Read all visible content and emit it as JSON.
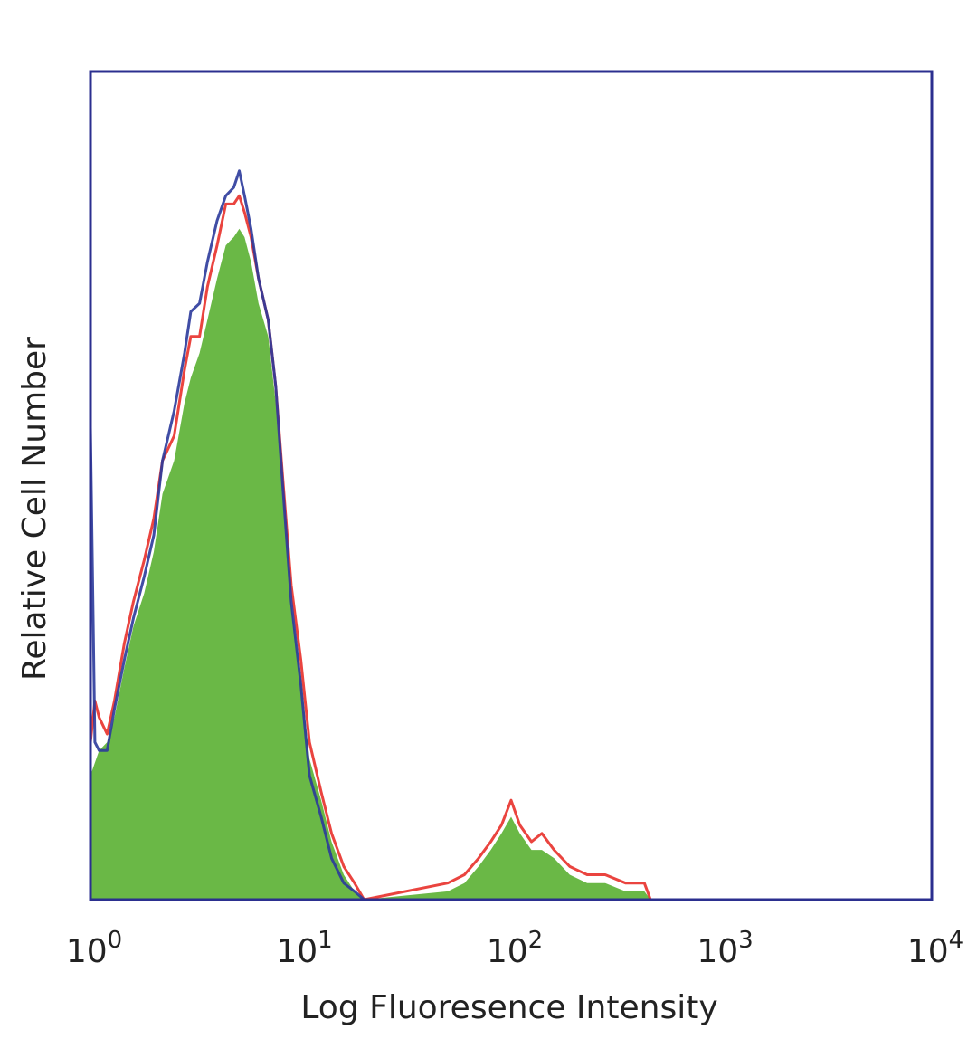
{
  "chart_data": {
    "type": "area",
    "xlabel": "Log Fluoresence Intensity",
    "ylabel": "Relative Cell Number",
    "x_scale": "log10",
    "xlim": [
      1,
      10000
    ],
    "ylim": [
      0,
      1
    ],
    "x_ticks": [
      {
        "base": "10",
        "exp": "0",
        "value": 1
      },
      {
        "base": "10",
        "exp": "1",
        "value": 10
      },
      {
        "base": "10",
        "exp": "2",
        "value": 100
      },
      {
        "base": "10",
        "exp": "3",
        "value": 1000
      },
      {
        "base": "10",
        "exp": "4",
        "value": 10000
      }
    ],
    "grid": false,
    "legend": "none",
    "colors": {
      "filled": "#6ab846",
      "red_outline": "#e8302a",
      "blue_outline": "#2b3a9b",
      "frame": "#2b2f8f"
    },
    "series": [
      {
        "style": "filled",
        "color": "#6ab846",
        "x": [
          1.0,
          1.1,
          1.2,
          1.3,
          1.45,
          1.6,
          1.8,
          2.0,
          2.2,
          2.5,
          2.8,
          3.0,
          3.3,
          3.6,
          4.0,
          4.4,
          4.8,
          5.1,
          5.4,
          5.8,
          6.3,
          7.0,
          7.6,
          8.2,
          9.0,
          10.0,
          11.0,
          12.5,
          14.0,
          16.0,
          18.0,
          20.0,
          50.0,
          60.0,
          70.0,
          80.0,
          90.0,
          100.0,
          110.0,
          125.0,
          140.0,
          160.0,
          190.0,
          230.0,
          280.0,
          350.0,
          430.0,
          460.0
        ],
        "y": [
          0.15,
          0.18,
          0.19,
          0.22,
          0.28,
          0.33,
          0.37,
          0.42,
          0.49,
          0.53,
          0.6,
          0.63,
          0.66,
          0.7,
          0.75,
          0.79,
          0.8,
          0.81,
          0.8,
          0.77,
          0.72,
          0.68,
          0.6,
          0.49,
          0.36,
          0.27,
          0.17,
          0.12,
          0.07,
          0.03,
          0.01,
          0.0,
          0.01,
          0.02,
          0.04,
          0.06,
          0.08,
          0.1,
          0.08,
          0.06,
          0.06,
          0.05,
          0.03,
          0.02,
          0.02,
          0.01,
          0.01,
          0.0
        ]
      },
      {
        "style": "outline",
        "color": "#e8302a",
        "x": [
          1.0,
          1.05,
          1.1,
          1.2,
          1.3,
          1.45,
          1.6,
          1.8,
          2.0,
          2.2,
          2.5,
          2.8,
          3.0,
          3.3,
          3.6,
          4.0,
          4.4,
          4.8,
          5.1,
          5.4,
          5.8,
          6.3,
          7.0,
          7.6,
          8.2,
          9.0,
          10.0,
          11.0,
          12.5,
          14.0,
          16.0,
          18.0,
          20.0,
          50.0,
          60.0,
          70.0,
          80.0,
          90.0,
          100.0,
          110.0,
          125.0,
          140.0,
          160.0,
          190.0,
          230.0,
          280.0,
          350.0,
          430.0,
          460.0
        ],
        "y": [
          0.19,
          0.24,
          0.22,
          0.2,
          0.24,
          0.31,
          0.36,
          0.41,
          0.46,
          0.53,
          0.56,
          0.64,
          0.68,
          0.68,
          0.74,
          0.79,
          0.84,
          0.84,
          0.85,
          0.83,
          0.8,
          0.75,
          0.7,
          0.62,
          0.51,
          0.38,
          0.29,
          0.19,
          0.13,
          0.08,
          0.04,
          0.02,
          0.0,
          0.02,
          0.03,
          0.05,
          0.07,
          0.09,
          0.12,
          0.09,
          0.07,
          0.08,
          0.06,
          0.04,
          0.03,
          0.03,
          0.02,
          0.02,
          0.0
        ]
      },
      {
        "style": "outline",
        "color": "#2b3a9b",
        "x": [
          1.0,
          1.05,
          1.1,
          1.2,
          1.3,
          1.45,
          1.6,
          1.8,
          2.0,
          2.2,
          2.5,
          2.8,
          3.0,
          3.3,
          3.6,
          4.0,
          4.4,
          4.8,
          5.1,
          5.4,
          5.8,
          6.3,
          7.0,
          7.6,
          8.2,
          9.0,
          10.0,
          11.0,
          12.5,
          14.0,
          16.0,
          18.0,
          20.0,
          10000.0
        ],
        "y": [
          0.57,
          0.19,
          0.18,
          0.18,
          0.23,
          0.29,
          0.34,
          0.39,
          0.44,
          0.53,
          0.59,
          0.66,
          0.71,
          0.72,
          0.77,
          0.82,
          0.85,
          0.86,
          0.88,
          0.85,
          0.81,
          0.75,
          0.7,
          0.62,
          0.5,
          0.36,
          0.26,
          0.15,
          0.1,
          0.05,
          0.02,
          0.01,
          0.0,
          0.0
        ]
      }
    ]
  }
}
